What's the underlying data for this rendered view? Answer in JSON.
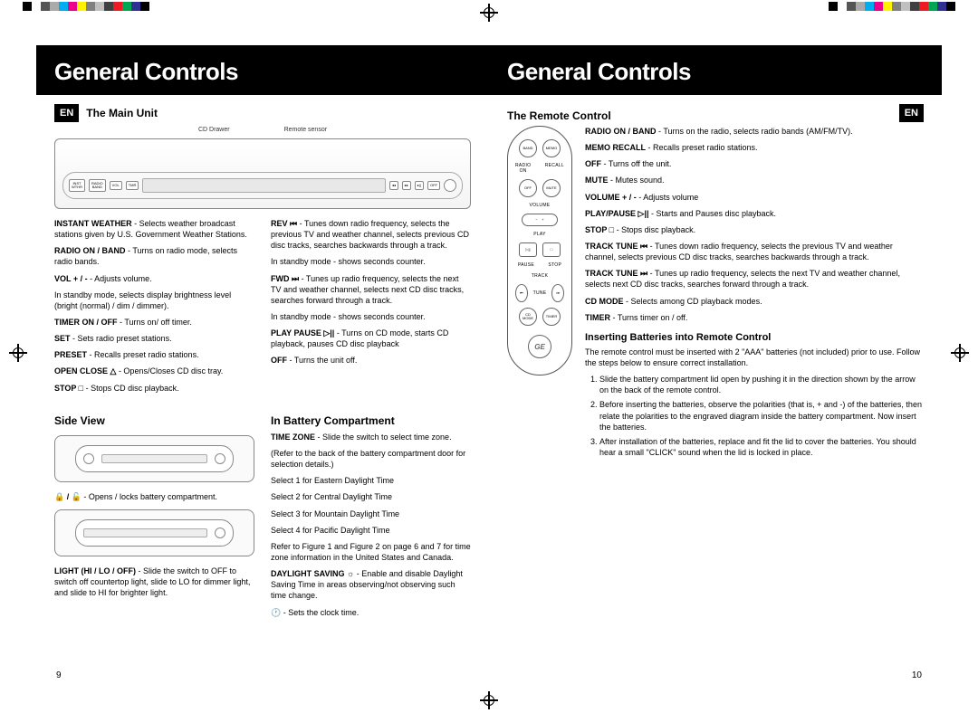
{
  "registration": {
    "color_bars": [
      "#000000",
      "#ffffff",
      "#555555",
      "#aaaaaa",
      "#00aeef",
      "#ec008c",
      "#fff200",
      "#808080",
      "#c0c0c0",
      "#404040",
      "#ed1c24",
      "#00a651",
      "#2e3192",
      "#000000"
    ]
  },
  "page_left": {
    "badge": "EN",
    "title": "General Controls",
    "main_unit": {
      "heading": "The Main Unit",
      "labels": {
        "cd_drawer": "CD Drawer",
        "remote_sensor": "Remote sensor"
      },
      "left_col": [
        {
          "term": "INSTANT WEATHER",
          "text": " - Selects weather broadcast stations given by U.S. Government Weather Stations."
        },
        {
          "term": "RADIO ON / BAND",
          "text": " - Turns on radio mode, selects radio bands."
        },
        {
          "term": "VOL + / -",
          "text": " - Adjusts volume."
        },
        {
          "term": "",
          "text": "In standby mode, selects display brightness level (bright (normal) / dim / dimmer)."
        },
        {
          "term": "TIMER ON / OFF",
          "text": " - Turns on/ off timer."
        },
        {
          "term": "SET",
          "text": " - Sets radio preset stations."
        },
        {
          "term": "PRESET",
          "text": " - Recalls preset radio stations."
        },
        {
          "term": "OPEN CLOSE △",
          "text": " - Opens/Closes CD disc tray."
        },
        {
          "term": "STOP □",
          "text": " - Stops CD disc playback."
        }
      ],
      "right_col": [
        {
          "term": "REV ⏮",
          "text": " - Tunes down radio frequency, selects the previous TV and weather channel, selects previous CD disc tracks, searches backwards through a track."
        },
        {
          "term": "",
          "text": "In standby mode - shows seconds counter."
        },
        {
          "term": "FWD ⏭",
          "text": " - Tunes up radio frequency, selects the next TV and weather channel, selects next CD disc tracks, searches forward through a track."
        },
        {
          "term": "",
          "text": "In standby mode - shows seconds counter."
        },
        {
          "term": "PLAY PAUSE ▷||",
          "text": " - Turns on CD mode, starts CD playback, pauses CD disc playback"
        },
        {
          "term": "OFF",
          "text": " - Turns the unit off."
        }
      ]
    },
    "side_view": {
      "heading": "Side View",
      "items": [
        {
          "term": "🔒 / 🔓",
          "text": " - Opens / locks battery compartment."
        },
        {
          "term": "LIGHT (HI / LO / OFF)",
          "text": " - Slide the switch to OFF to switch off countertop light, slide to LO for dimmer light, and slide to HI for brighter light."
        }
      ]
    },
    "battery_comp": {
      "heading": "In Battery Compartment",
      "items": [
        {
          "term": "TIME ZONE",
          "text": " - Slide the switch to select time zone."
        },
        {
          "term": "",
          "text": "(Refer to the back of the battery compartment door for selection details.)"
        },
        {
          "term": "",
          "text": "Select 1 for Eastern Daylight Time"
        },
        {
          "term": "",
          "text": "Select 2 for Central Daylight Time"
        },
        {
          "term": "",
          "text": "Select 3 for Mountain Daylight Time"
        },
        {
          "term": "",
          "text": "Select 4 for Pacific Daylight Time"
        },
        {
          "term": "",
          "text": "Refer to Figure 1 and Figure 2 on page 6 and 7 for time zone information in the United States and Canada."
        },
        {
          "term": "DAYLIGHT SAVING ☼",
          "text": " - Enable and disable Daylight Saving Time in areas observing/not observing such time change."
        },
        {
          "term": "🕐",
          "text": " - Sets the clock time."
        }
      ]
    },
    "page_num": "9"
  },
  "page_right": {
    "badge": "EN",
    "title": "General Controls",
    "remote": {
      "heading": "The Remote Control",
      "items": [
        {
          "term": "RADIO ON / BAND",
          "text": " - Turns on the radio, selects radio bands (AM/FM/TV)."
        },
        {
          "term": "MEMO RECALL",
          "text": " - Recalls preset radio stations."
        },
        {
          "term": "OFF",
          "text": " - Turns off the unit."
        },
        {
          "term": "MUTE",
          "text": " - Mutes sound."
        },
        {
          "term": "VOLUME + / -",
          "text": " - Adjusts volume"
        },
        {
          "term": "PLAY/PAUSE ▷||",
          "text": " - Starts and Pauses disc playback."
        },
        {
          "term": "STOP □",
          "text": " - Stops disc playback."
        },
        {
          "term": "TRACK TUNE ⏮",
          "text": " - Tunes down radio frequency, selects the previous TV and weather channel, selects previous CD disc tracks, searches backwards through a track."
        },
        {
          "term": "TRACK TUNE ⏭",
          "text": " - Tunes up radio frequency, selects the next TV and weather channel, selects next CD disc tracks, searches forward through a track."
        },
        {
          "term": "CD MODE",
          "text": " - Selects among CD playback modes."
        },
        {
          "term": "TIMER",
          "text": " - Turns timer on / off."
        }
      ],
      "buttons": {
        "band": "BAND",
        "memo": "MEMO",
        "radio_on": "RADIO ON",
        "recall": "RECALL",
        "off": "OFF",
        "mute": "MUTE",
        "volume": "VOLUME",
        "play": "PLAY",
        "pause": "PAUSE",
        "stop": "STOP",
        "track": "TRACK",
        "tune": "TUNE",
        "cd_mode": "CD MODE",
        "timer": "TIMER"
      }
    },
    "batteries": {
      "heading": "Inserting Batteries into Remote Control",
      "intro": "The remote control must be inserted with 2 \"AAA\" batteries (not included) prior to use.  Follow the steps below to ensure correct installation.",
      "steps": [
        "Slide the battery compartment lid open by pushing it in the direction shown by the arrow on the back of the remote control.",
        "Before inserting the batteries, observe the polarities (that is, + and -) of the batteries, then relate the polarities to the engraved diagram inside the battery compartment.  Now insert the batteries.",
        "After installation of the batteries, replace and fit the lid to cover the batteries. You should hear a small \"CLICK\" sound when the lid is locked in place."
      ]
    },
    "page_num": "10"
  }
}
